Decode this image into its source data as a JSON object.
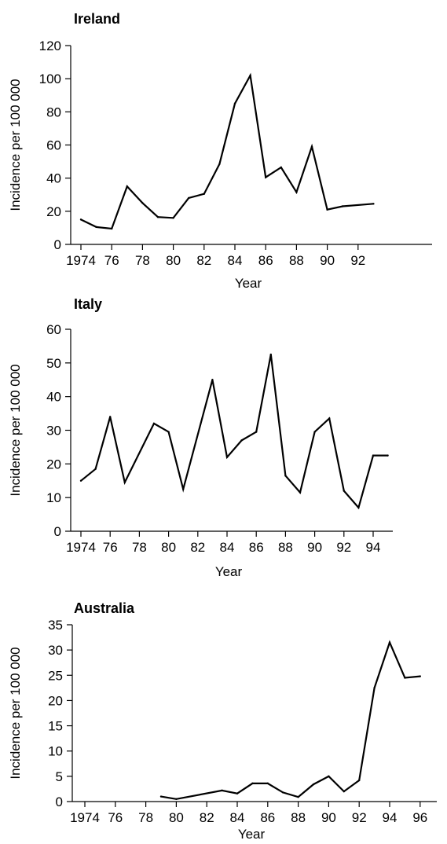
{
  "chart_data": [
    {
      "type": "line",
      "title": "Ireland",
      "xlabel": "Year",
      "ylabel": "Incidence per 100 000",
      "ylim": [
        0,
        120
      ],
      "xlim": [
        1974,
        1993
      ],
      "y_ticks": [
        0,
        20,
        40,
        60,
        80,
        100,
        120
      ],
      "x_ticks": [
        {
          "value": 1974,
          "label": "1974"
        },
        {
          "value": 1976,
          "label": "76"
        },
        {
          "value": 1978,
          "label": "78"
        },
        {
          "value": 1980,
          "label": "80"
        },
        {
          "value": 1982,
          "label": "82"
        },
        {
          "value": 1984,
          "label": "84"
        },
        {
          "value": 1986,
          "label": "86"
        },
        {
          "value": 1988,
          "label": "88"
        },
        {
          "value": 1990,
          "label": "90"
        },
        {
          "value": 1992,
          "label": "92"
        }
      ],
      "x": [
        1974,
        1975,
        1976,
        1977,
        1978,
        1979,
        1980,
        1981,
        1982,
        1983,
        1984,
        1985,
        1986,
        1987,
        1988,
        1989,
        1990,
        1991,
        1993
      ],
      "values": [
        15,
        10.5,
        9.5,
        35,
        25,
        16.5,
        16,
        28,
        30.5,
        48.5,
        85,
        102,
        40.5,
        46.5,
        31.5,
        59,
        21,
        23,
        24.5
      ]
    },
    {
      "type": "line",
      "title": "Italy",
      "xlabel": "Year",
      "ylabel": "Incidence per 100 000",
      "ylim": [
        0,
        60
      ],
      "xlim": [
        1974,
        1995
      ],
      "y_ticks": [
        0,
        10,
        20,
        30,
        40,
        50,
        60
      ],
      "x_ticks": [
        {
          "value": 1974,
          "label": "1974"
        },
        {
          "value": 1976,
          "label": "76"
        },
        {
          "value": 1978,
          "label": "78"
        },
        {
          "value": 1980,
          "label": "80"
        },
        {
          "value": 1982,
          "label": "82"
        },
        {
          "value": 1984,
          "label": "84"
        },
        {
          "value": 1986,
          "label": "86"
        },
        {
          "value": 1988,
          "label": "88"
        },
        {
          "value": 1990,
          "label": "90"
        },
        {
          "value": 1992,
          "label": "92"
        },
        {
          "value": 1994,
          "label": "94"
        }
      ],
      "x": [
        1974,
        1975,
        1976,
        1977,
        1979,
        1980,
        1981,
        1983,
        1984,
        1985,
        1986,
        1987,
        1988,
        1989,
        1990,
        1991,
        1992,
        1993,
        1994,
        1995
      ],
      "values": [
        15,
        18.5,
        34,
        14.5,
        32,
        29.5,
        12.5,
        45,
        22,
        27,
        29.5,
        52.5,
        16.5,
        11.5,
        29.5,
        33.5,
        12,
        7,
        22.5,
        22.5
      ]
    },
    {
      "type": "line",
      "title": "Australia",
      "xlabel": "Year",
      "ylabel": "Incidence per 100 000",
      "ylim": [
        0,
        35
      ],
      "xlim": [
        1974,
        1996
      ],
      "y_ticks": [
        0,
        5,
        10,
        15,
        20,
        25,
        30,
        35
      ],
      "x_ticks": [
        {
          "value": 1974,
          "label": "1974"
        },
        {
          "value": 1976,
          "label": "76"
        },
        {
          "value": 1978,
          "label": "78"
        },
        {
          "value": 1980,
          "label": "80"
        },
        {
          "value": 1982,
          "label": "82"
        },
        {
          "value": 1984,
          "label": "84"
        },
        {
          "value": 1986,
          "label": "86"
        },
        {
          "value": 1988,
          "label": "88"
        },
        {
          "value": 1990,
          "label": "90"
        },
        {
          "value": 1992,
          "label": "92"
        },
        {
          "value": 1994,
          "label": "94"
        },
        {
          "value": 1996,
          "label": "96"
        }
      ],
      "x": [
        1979,
        1980,
        1983,
        1984,
        1985,
        1986,
        1987,
        1988,
        1989,
        1990,
        1991,
        1992,
        1993,
        1994,
        1995,
        1996
      ],
      "values": [
        1,
        0.5,
        2.2,
        1.6,
        3.6,
        3.6,
        1.8,
        0.9,
        3.4,
        5,
        2,
        4.2,
        22.5,
        31.5,
        24.5,
        24.8
      ]
    }
  ]
}
